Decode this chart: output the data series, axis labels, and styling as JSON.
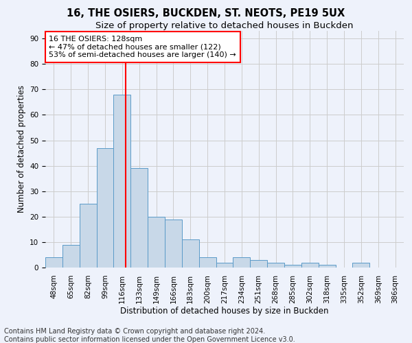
{
  "title1": "16, THE OSIERS, BUCKDEN, ST. NEOTS, PE19 5UX",
  "title2": "Size of property relative to detached houses in Buckden",
  "xlabel": "Distribution of detached houses by size in Buckden",
  "ylabel": "Number of detached properties",
  "footer1": "Contains HM Land Registry data © Crown copyright and database right 2024.",
  "footer2": "Contains public sector information licensed under the Open Government Licence v3.0.",
  "bin_labels": [
    "48sqm",
    "65sqm",
    "82sqm",
    "99sqm",
    "116sqm",
    "133sqm",
    "149sqm",
    "166sqm",
    "183sqm",
    "200sqm",
    "217sqm",
    "234sqm",
    "251sqm",
    "268sqm",
    "285sqm",
    "302sqm",
    "318sqm",
    "335sqm",
    "352sqm",
    "369sqm",
    "386sqm"
  ],
  "bar_values": [
    4,
    9,
    25,
    47,
    68,
    39,
    20,
    19,
    11,
    4,
    2,
    4,
    3,
    2,
    1,
    2,
    1,
    0,
    2,
    0,
    0
  ],
  "bar_color": "#c8d8e8",
  "bar_edgecolor": "#5a9ac8",
  "annotation_line1": "16 THE OSIERS: 128sqm",
  "annotation_line2": "← 47% of detached houses are smaller (122)",
  "annotation_line3": "53% of semi-detached houses are larger (140) →",
  "annotation_box_color": "white",
  "annotation_box_edgecolor": "red",
  "vline_color": "red",
  "ylim": [
    0,
    93
  ],
  "yticks": [
    0,
    10,
    20,
    30,
    40,
    50,
    60,
    70,
    80,
    90
  ],
  "grid_color": "#cccccc",
  "background_color": "#eef2fb",
  "title1_fontsize": 10.5,
  "title2_fontsize": 9.5,
  "axis_label_fontsize": 8.5,
  "tick_fontsize": 7.5,
  "annotation_fontsize": 8,
  "footer_fontsize": 7
}
